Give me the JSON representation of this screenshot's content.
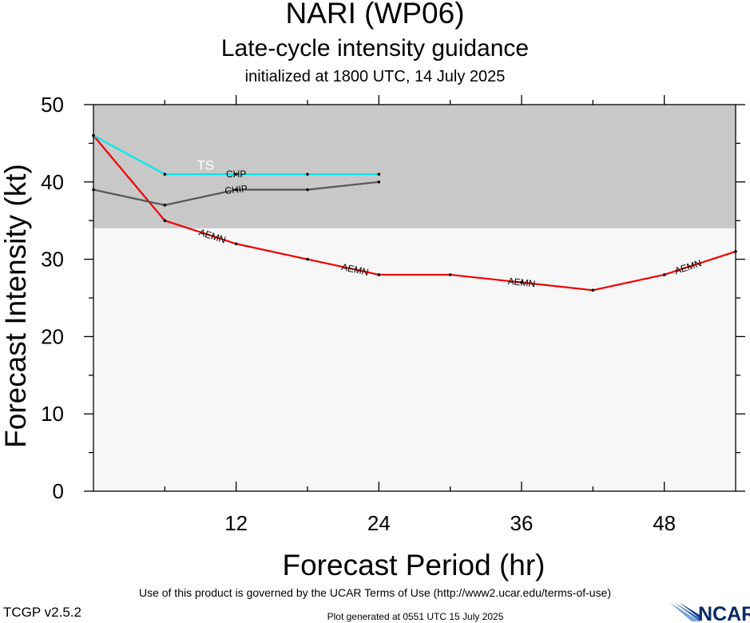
{
  "header": {
    "title": "NARI (WP06)",
    "subtitle": "Late-cycle intensity guidance",
    "init_line": "initialized at 1800 UTC, 14 July 2025"
  },
  "footer": {
    "terms": "Use of this product is governed by the UCAR Terms of Use (http://www2.ucar.edu/terms-of-use)",
    "version": "TCGP v2.5.2",
    "generated": "Plot generated at 0551 UTC   15 July 2025",
    "logo_text": "NCAR"
  },
  "colors": {
    "ts_band": "#c8c8c8",
    "below_ts": "#f7f7f7",
    "aemn": "#ee0000",
    "chp": "#00e8e8",
    "chip": "#555555"
  },
  "chart_data": {
    "type": "line",
    "xlabel": "Forecast Period (hr)",
    "ylabel": "Forecast Intensity (kt)",
    "xlim": [
      0,
      54
    ],
    "ylim": [
      0,
      50
    ],
    "x_ticks": [
      12,
      24,
      36,
      48
    ],
    "y_ticks": [
      0,
      10,
      20,
      30,
      40,
      50
    ],
    "x_minor_ticks": [
      6,
      18,
      30,
      42
    ],
    "y_minor_ticks": [
      5,
      15,
      25,
      35,
      45
    ],
    "band": {
      "label": "TS",
      "from": 34,
      "to": 50
    },
    "series": [
      {
        "name": "AEMN",
        "color": "#ee0000",
        "x": [
          0,
          6,
          12,
          18,
          24,
          30,
          36,
          42,
          48,
          54
        ],
        "values": [
          46,
          35,
          32,
          30,
          28,
          28,
          27,
          26,
          28,
          31
        ],
        "label_at": [
          10,
          22,
          36,
          50
        ]
      },
      {
        "name": "CHP",
        "color": "#00e8e8",
        "x": [
          0,
          6,
          12,
          18,
          24
        ],
        "values": [
          46,
          41,
          41,
          41,
          41
        ],
        "label_at": [
          12
        ]
      },
      {
        "name": "CHIP",
        "color": "#555555",
        "x": [
          0,
          6,
          12,
          18,
          24
        ],
        "values": [
          39,
          37,
          39,
          39,
          40
        ],
        "label_at": [
          12
        ]
      }
    ]
  }
}
